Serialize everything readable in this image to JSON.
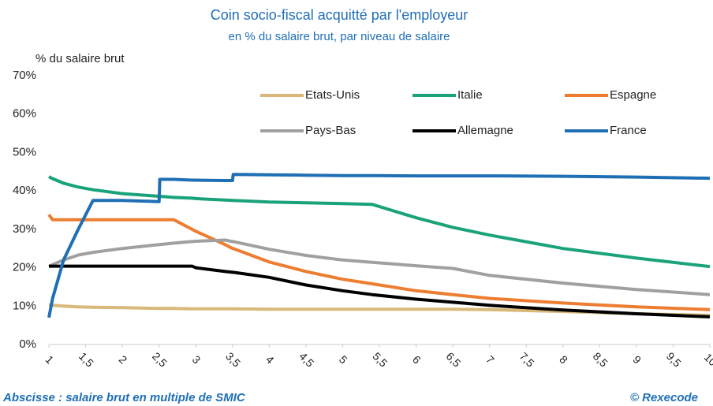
{
  "chart_data": {
    "type": "line",
    "title": "Coin socio-fiscal acquitté par l'employeur",
    "subtitle": "en % du salaire brut, par niveau de salaire",
    "y_axis_label": "% du salaire brut",
    "footnote": "Abscisse : salaire brut en multiple de SMIC",
    "source": "© Rexecode",
    "x": [
      1,
      1.05,
      1.2,
      1.4,
      1.6,
      2,
      2.5,
      2.51,
      2.7,
      2.95,
      3,
      3.4,
      3.5,
      3.51,
      4,
      4.5,
      5,
      5.4,
      6,
      6.5,
      7,
      8,
      9,
      10
    ],
    "series": [
      {
        "name": "Etats-Unis",
        "color": "#d9b87a",
        "values": [
          10.3,
          10.2,
          10,
          9.8,
          9.7,
          9.6,
          9.4,
          9.4,
          9.4,
          9.3,
          9.3,
          9.3,
          9.3,
          9.3,
          9.2,
          9.2,
          9.2,
          9.2,
          9.2,
          9.2,
          9.1,
          8.6,
          8,
          7.6
        ]
      },
      {
        "name": "Italie",
        "color": "#1aa37a",
        "values": [
          43.7,
          43.2,
          42,
          41,
          40.3,
          39.3,
          38.6,
          38.6,
          38.3,
          38.1,
          38,
          37.6,
          37.5,
          37.5,
          37.1,
          36.9,
          36.7,
          36.5,
          33,
          30.5,
          28.5,
          25,
          22.5,
          20.3
        ]
      },
      {
        "name": "Espagne",
        "color": "#ed7d31",
        "values": [
          33.8,
          32.5,
          32.5,
          32.5,
          32.5,
          32.5,
          32.5,
          32.5,
          32.5,
          30,
          29.5,
          26,
          25,
          25,
          21.5,
          19,
          17,
          15.8,
          14,
          13,
          12,
          10.8,
          9.8,
          9.1
        ]
      },
      {
        "name": "Pays-Bas",
        "color": "#a0a0a0",
        "values": [
          20.3,
          20.8,
          22,
          23.3,
          24,
          25,
          26,
          26,
          26.4,
          26.8,
          26.9,
          27.2,
          26.8,
          26.8,
          24.8,
          23.2,
          22,
          21.4,
          20.5,
          19.8,
          18,
          16,
          14.3,
          13
        ]
      },
      {
        "name": "Allemagne",
        "color": "#000000",
        "values": [
          20.4,
          20.4,
          20.4,
          20.4,
          20.4,
          20.4,
          20.4,
          20.4,
          20.4,
          20.4,
          20,
          19,
          18.8,
          18.8,
          17.5,
          15.5,
          14,
          13,
          11.8,
          11,
          10.2,
          9,
          8,
          7.2
        ]
      },
      {
        "name": "France",
        "color": "#1f6fb5",
        "values": [
          7,
          12,
          22,
          30,
          37.5,
          37.5,
          37.2,
          43,
          43,
          42.8,
          42.8,
          42.7,
          42.7,
          44.3,
          44.2,
          44.1,
          44,
          44,
          43.9,
          43.9,
          43.9,
          43.8,
          43.6,
          43.3
        ]
      }
    ],
    "xlim": [
      1,
      10
    ],
    "xticks": [
      1,
      {
        "value": 1.5,
        "label": "1,5"
      },
      2,
      {
        "value": 2.5,
        "label": "2,5"
      },
      3,
      {
        "value": 3.5,
        "label": "3,5"
      },
      4,
      {
        "value": 4.5,
        "label": "4,5"
      },
      5,
      {
        "value": 5.5,
        "label": "5,5"
      },
      6,
      {
        "value": 6.5,
        "label": "6,5"
      },
      7,
      {
        "value": 7.5,
        "label": "7,5"
      },
      8,
      {
        "value": 8.5,
        "label": "8,5"
      },
      9,
      {
        "value": 9.5,
        "label": "9,5"
      },
      10
    ],
    "ylim": [
      0,
      70
    ],
    "yticks": [
      {
        "value": 0,
        "label": "0%"
      },
      {
        "value": 10,
        "label": "10%"
      },
      {
        "value": 20,
        "label": "20%"
      },
      {
        "value": 30,
        "label": "30%"
      },
      {
        "value": 40,
        "label": "40%"
      },
      {
        "value": 50,
        "label": "50%"
      },
      {
        "value": 60,
        "label": "60%"
      },
      {
        "value": 70,
        "label": "70%"
      }
    ],
    "grid": false,
    "legend": "top-right"
  }
}
